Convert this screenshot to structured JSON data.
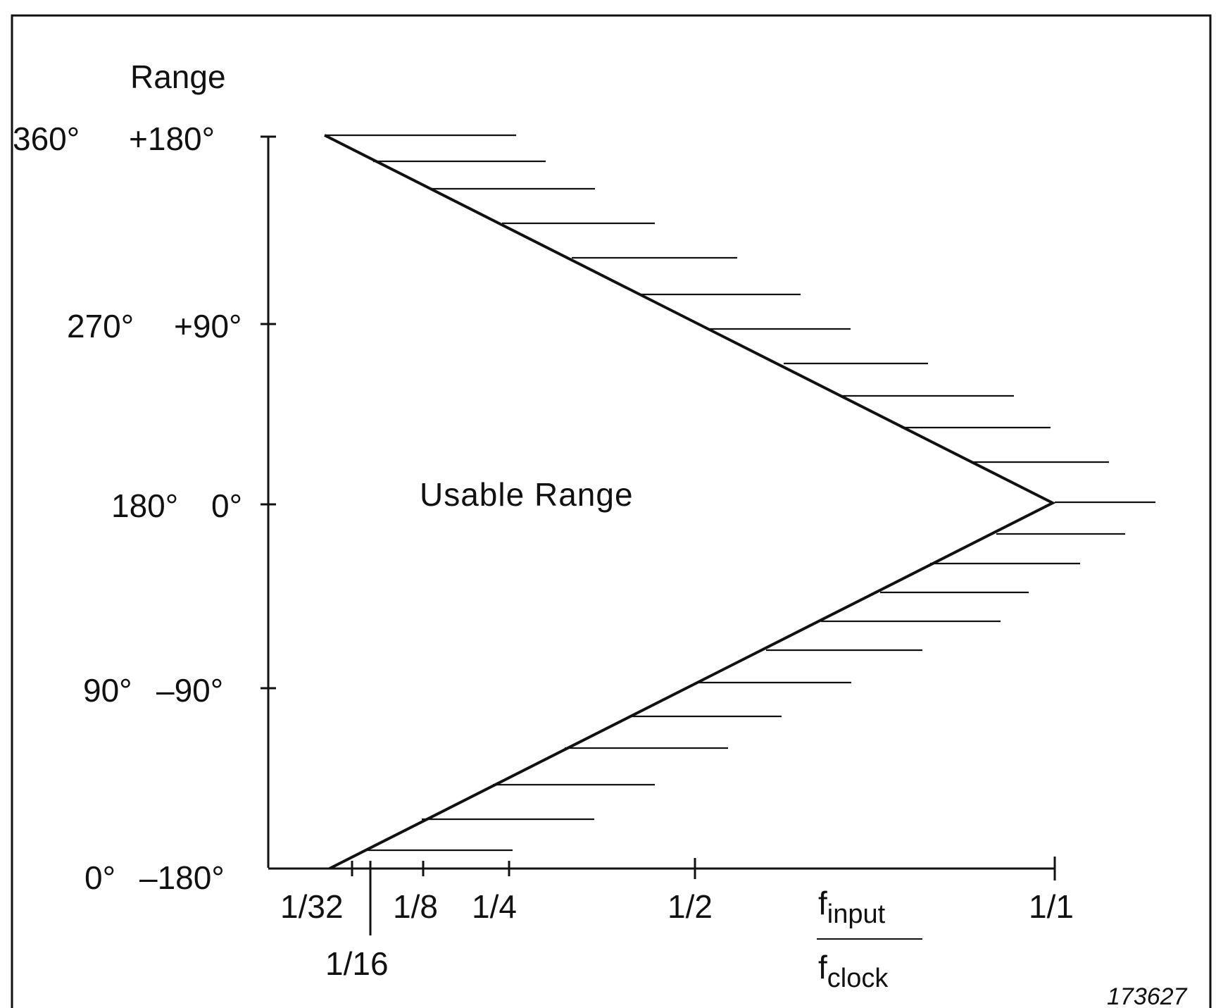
{
  "figure_number": "173627",
  "y_axis": {
    "title": "Range",
    "ticks": [
      {
        "left": "360°",
        "right": "+180°"
      },
      {
        "left": "270°",
        "right": "+90°"
      },
      {
        "left": "180°",
        "right": "0°"
      },
      {
        "left": "90°",
        "right": "–90°"
      },
      {
        "left": "0°",
        "right": "–180°"
      }
    ]
  },
  "x_axis": {
    "ticks": [
      "1/32",
      "1/16",
      "1/8",
      "1/4",
      "1/2",
      "1/1"
    ],
    "label_numerator_base": "f",
    "label_numerator_sub": "input",
    "label_denominator_base": "f",
    "label_denominator_sub": "clock"
  },
  "region_label": "Usable Range"
}
